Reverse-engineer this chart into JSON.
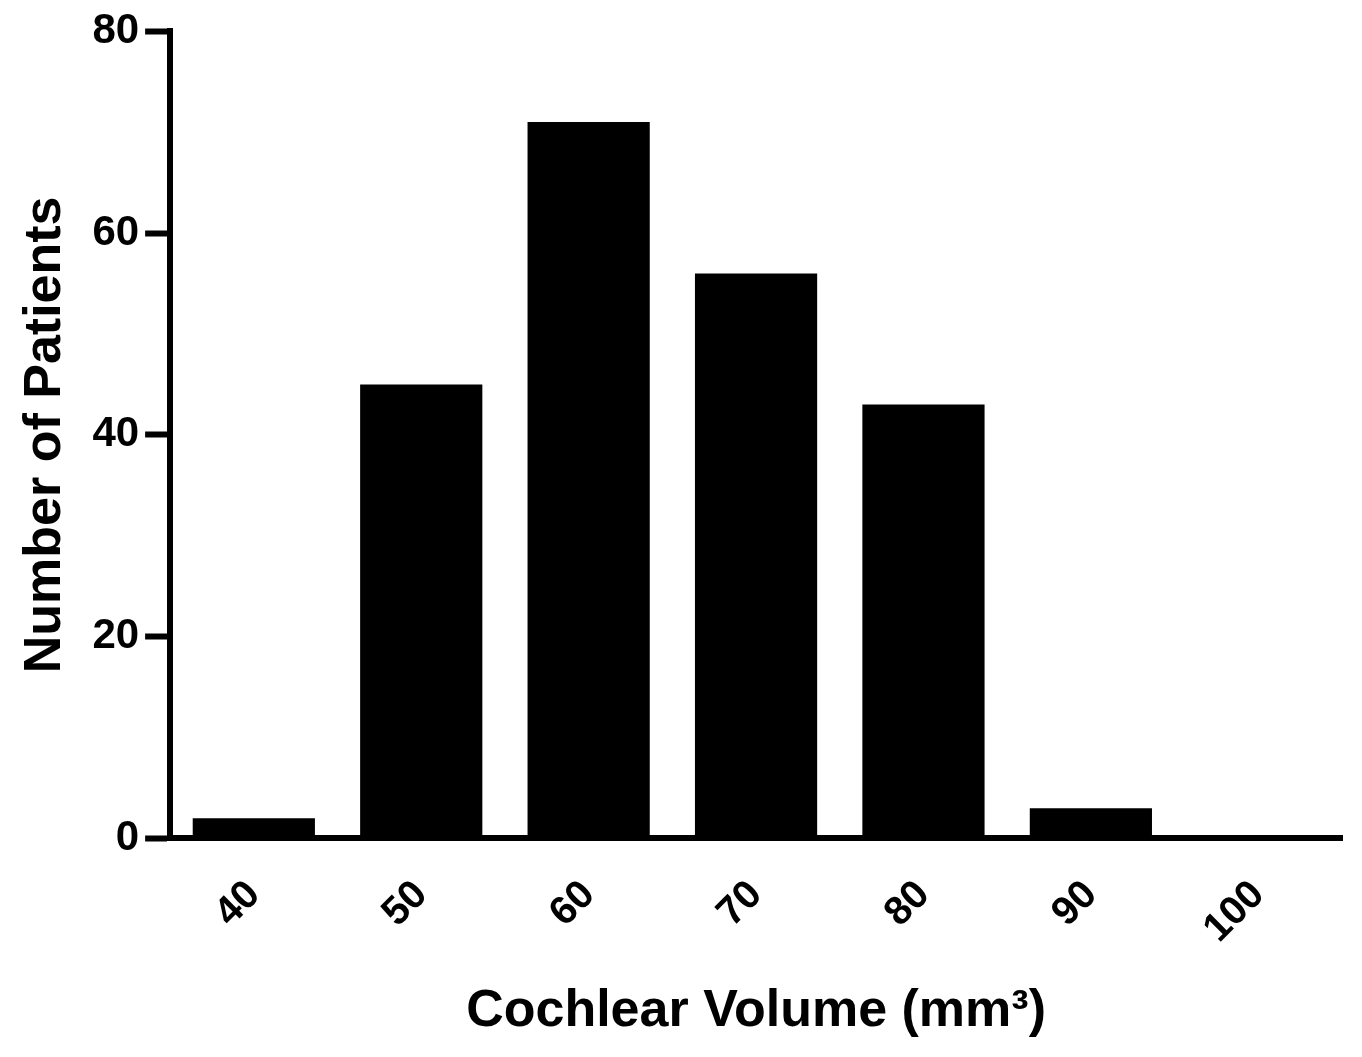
{
  "chart_data": {
    "type": "bar",
    "categories": [
      "40",
      "50",
      "60",
      "70",
      "80",
      "90",
      "100"
    ],
    "values": [
      2,
      45,
      71,
      56,
      43,
      3,
      0
    ],
    "color": "#000000",
    "xlabel": "Cochlear Volume (mm³)",
    "ylabel": "Number of Patients",
    "ylim": [
      0,
      80
    ],
    "yticks": [
      0,
      20,
      40,
      60,
      80
    ]
  }
}
